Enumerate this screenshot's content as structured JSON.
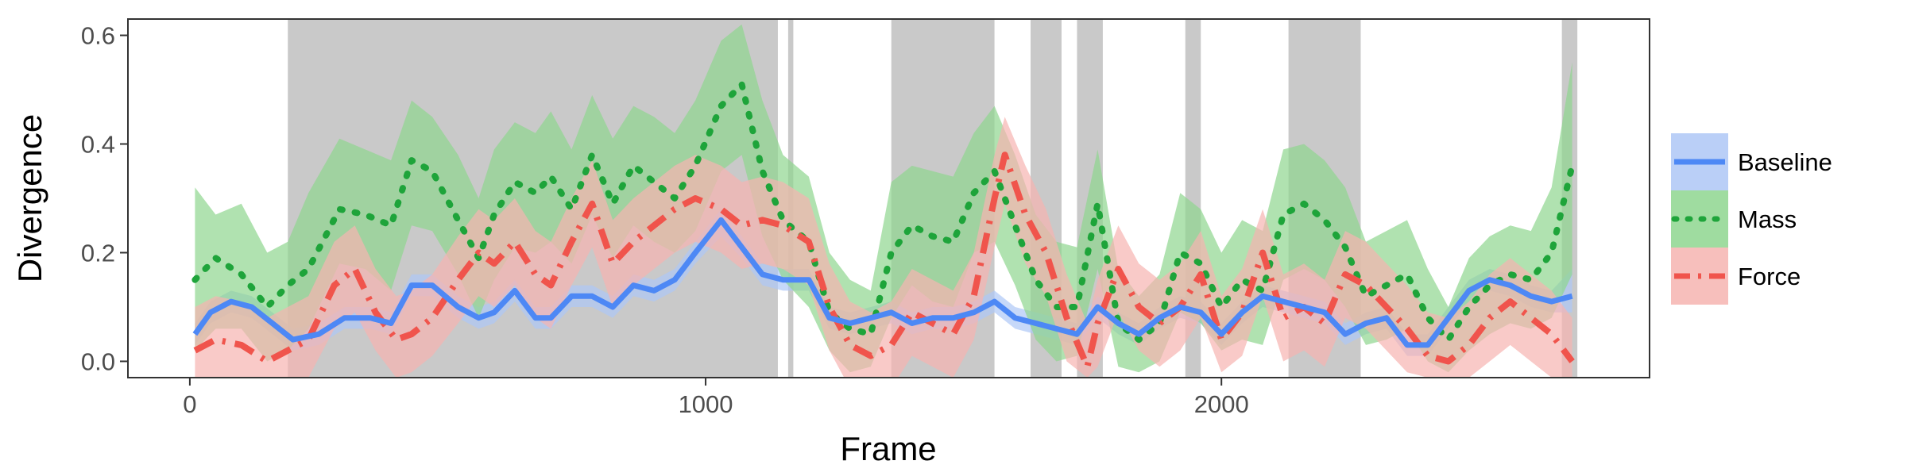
{
  "chart_data": {
    "type": "line",
    "xlabel": "Frame",
    "ylabel": "Divergence",
    "xlim": [
      -120,
      2830
    ],
    "ylim": [
      -0.03,
      0.63
    ],
    "x_ticks": [
      0,
      1000,
      2000
    ],
    "x_tick_labels": [
      "0",
      "1000",
      "2000"
    ],
    "y_ticks": [
      0.0,
      0.2,
      0.4,
      0.6
    ],
    "y_tick_labels": [
      "0.0",
      "0.2",
      "0.4",
      "0.6"
    ],
    "grid": false,
    "legend_position": "right",
    "shaded_regions": [
      {
        "x_start": 190,
        "x_end": 1140
      },
      {
        "x_start": 1160,
        "x_end": 1170
      },
      {
        "x_start": 1360,
        "x_end": 1560
      },
      {
        "x_start": 1630,
        "x_end": 1690
      },
      {
        "x_start": 1720,
        "x_end": 1770
      },
      {
        "x_start": 1930,
        "x_end": 1960
      },
      {
        "x_start": 2130,
        "x_end": 2270
      },
      {
        "x_start": 2660,
        "x_end": 2690
      }
    ],
    "series": [
      {
        "name": "Baseline",
        "color": "#4d88f5",
        "band_color": "#aec7f6",
        "line_style": "solid",
        "x": [
          10,
          40,
          80,
          120,
          160,
          200,
          250,
          300,
          350,
          390,
          430,
          470,
          520,
          560,
          590,
          630,
          670,
          700,
          740,
          780,
          820,
          860,
          900,
          940,
          980,
          1030,
          1070,
          1110,
          1150,
          1200,
          1240,
          1280,
          1320,
          1360,
          1400,
          1440,
          1480,
          1520,
          1560,
          1600,
          1640,
          1680,
          1720,
          1760,
          1800,
          1840,
          1880,
          1920,
          1960,
          2000,
          2040,
          2080,
          2120,
          2160,
          2200,
          2240,
          2280,
          2320,
          2360,
          2400,
          2440,
          2480,
          2520,
          2560,
          2600,
          2640,
          2680
        ],
        "y": [
          0.05,
          0.09,
          0.11,
          0.1,
          0.07,
          0.04,
          0.05,
          0.08,
          0.08,
          0.07,
          0.14,
          0.14,
          0.1,
          0.08,
          0.09,
          0.13,
          0.08,
          0.08,
          0.12,
          0.12,
          0.1,
          0.14,
          0.13,
          0.15,
          0.2,
          0.26,
          0.21,
          0.16,
          0.15,
          0.15,
          0.08,
          0.07,
          0.08,
          0.09,
          0.07,
          0.08,
          0.08,
          0.09,
          0.11,
          0.08,
          0.07,
          0.06,
          0.05,
          0.1,
          0.07,
          0.05,
          0.08,
          0.1,
          0.09,
          0.05,
          0.09,
          0.12,
          0.11,
          0.1,
          0.09,
          0.05,
          0.07,
          0.08,
          0.03,
          0.03,
          0.08,
          0.13,
          0.15,
          0.14,
          0.12,
          0.11,
          0.12
        ],
        "lower": [
          0.03,
          0.07,
          0.09,
          0.08,
          0.05,
          0.02,
          0.03,
          0.06,
          0.06,
          0.05,
          0.12,
          0.12,
          0.08,
          0.06,
          0.07,
          0.11,
          0.06,
          0.06,
          0.1,
          0.1,
          0.08,
          0.12,
          0.11,
          0.13,
          0.18,
          0.23,
          0.19,
          0.14,
          0.13,
          0.13,
          0.06,
          0.05,
          0.06,
          0.07,
          0.05,
          0.06,
          0.06,
          0.07,
          0.09,
          0.06,
          0.05,
          0.04,
          0.03,
          0.08,
          0.05,
          0.03,
          0.06,
          0.08,
          0.07,
          0.03,
          0.07,
          0.1,
          0.09,
          0.08,
          0.07,
          0.03,
          0.05,
          0.06,
          0.01,
          0.01,
          0.06,
          0.11,
          0.13,
          0.12,
          0.1,
          0.09,
          0.09
        ],
        "upper": [
          0.07,
          0.11,
          0.13,
          0.12,
          0.09,
          0.06,
          0.07,
          0.1,
          0.1,
          0.09,
          0.16,
          0.16,
          0.12,
          0.1,
          0.11,
          0.15,
          0.1,
          0.1,
          0.14,
          0.14,
          0.12,
          0.16,
          0.15,
          0.17,
          0.22,
          0.28,
          0.23,
          0.18,
          0.17,
          0.17,
          0.1,
          0.09,
          0.1,
          0.11,
          0.09,
          0.1,
          0.1,
          0.11,
          0.13,
          0.1,
          0.09,
          0.08,
          0.07,
          0.12,
          0.09,
          0.07,
          0.1,
          0.12,
          0.11,
          0.07,
          0.11,
          0.14,
          0.13,
          0.12,
          0.11,
          0.07,
          0.09,
          0.1,
          0.05,
          0.05,
          0.1,
          0.15,
          0.17,
          0.16,
          0.14,
          0.13,
          0.17
        ]
      },
      {
        "name": "Mass",
        "color": "#1ea43a",
        "band_color": "#8ed68f",
        "line_style": "dotted",
        "x": [
          10,
          50,
          100,
          150,
          190,
          230,
          290,
          340,
          390,
          430,
          470,
          520,
          560,
          590,
          630,
          670,
          700,
          740,
          780,
          820,
          860,
          900,
          940,
          980,
          1030,
          1070,
          1110,
          1150,
          1200,
          1240,
          1280,
          1320,
          1360,
          1400,
          1440,
          1480,
          1520,
          1560,
          1600,
          1640,
          1680,
          1720,
          1760,
          1800,
          1840,
          1880,
          1920,
          1960,
          2000,
          2040,
          2080,
          2120,
          2160,
          2200,
          2240,
          2280,
          2320,
          2360,
          2400,
          2440,
          2480,
          2520,
          2560,
          2600,
          2640,
          2680
        ],
        "y": [
          0.15,
          0.19,
          0.16,
          0.1,
          0.14,
          0.17,
          0.28,
          0.27,
          0.25,
          0.37,
          0.35,
          0.26,
          0.19,
          0.27,
          0.33,
          0.31,
          0.34,
          0.28,
          0.38,
          0.29,
          0.36,
          0.33,
          0.3,
          0.36,
          0.47,
          0.51,
          0.35,
          0.26,
          0.22,
          0.09,
          0.06,
          0.05,
          0.2,
          0.25,
          0.23,
          0.22,
          0.31,
          0.35,
          0.25,
          0.15,
          0.1,
          0.1,
          0.29,
          0.07,
          0.04,
          0.07,
          0.2,
          0.18,
          0.1,
          0.15,
          0.13,
          0.27,
          0.29,
          0.26,
          0.21,
          0.12,
          0.14,
          0.16,
          0.08,
          0.04,
          0.1,
          0.14,
          0.16,
          0.15,
          0.2,
          0.36
        ],
        "lower": [
          0.02,
          0.06,
          0.06,
          0.0,
          0.02,
          0.06,
          0.18,
          0.17,
          0.13,
          0.25,
          0.24,
          0.16,
          0.08,
          0.15,
          0.21,
          0.2,
          0.22,
          0.18,
          0.27,
          0.19,
          0.25,
          0.22,
          0.2,
          0.24,
          0.35,
          0.38,
          0.23,
          0.15,
          0.1,
          0.02,
          -0.02,
          -0.01,
          0.08,
          0.14,
          0.11,
          0.1,
          0.2,
          0.22,
          0.14,
          0.04,
          0.0,
          0.01,
          0.17,
          -0.01,
          -0.02,
          0.0,
          0.09,
          0.07,
          0.02,
          0.04,
          0.03,
          0.15,
          0.17,
          0.15,
          0.1,
          0.03,
          0.04,
          0.06,
          0.0,
          -0.02,
          0.02,
          0.05,
          0.07,
          0.06,
          0.08,
          0.16
        ],
        "upper": [
          0.32,
          0.27,
          0.29,
          0.2,
          0.22,
          0.31,
          0.41,
          0.39,
          0.37,
          0.48,
          0.45,
          0.38,
          0.3,
          0.39,
          0.44,
          0.42,
          0.46,
          0.39,
          0.49,
          0.41,
          0.47,
          0.45,
          0.42,
          0.48,
          0.59,
          0.62,
          0.48,
          0.38,
          0.34,
          0.2,
          0.15,
          0.13,
          0.33,
          0.36,
          0.35,
          0.34,
          0.42,
          0.47,
          0.38,
          0.27,
          0.22,
          0.21,
          0.39,
          0.17,
          0.12,
          0.16,
          0.31,
          0.28,
          0.2,
          0.26,
          0.24,
          0.39,
          0.4,
          0.37,
          0.32,
          0.22,
          0.24,
          0.26,
          0.17,
          0.1,
          0.19,
          0.23,
          0.25,
          0.24,
          0.32,
          0.55
        ]
      },
      {
        "name": "Force",
        "color": "#f0544c",
        "band_color": "#f6b4b0",
        "line_style": "dash-dot",
        "x": [
          10,
          50,
          100,
          150,
          190,
          230,
          280,
          320,
          360,
          400,
          430,
          470,
          520,
          560,
          590,
          630,
          670,
          700,
          740,
          780,
          820,
          860,
          900,
          940,
          980,
          1030,
          1070,
          1110,
          1150,
          1200,
          1240,
          1280,
          1320,
          1360,
          1400,
          1440,
          1480,
          1520,
          1560,
          1580,
          1620,
          1660,
          1700,
          1740,
          1760,
          1800,
          1840,
          1880,
          1920,
          1960,
          2000,
          2040,
          2080,
          2120,
          2160,
          2200,
          2240,
          2280,
          2320,
          2360,
          2400,
          2440,
          2480,
          2520,
          2560,
          2600,
          2640,
          2680
        ],
        "y": [
          0.02,
          0.04,
          0.03,
          0.0,
          0.02,
          0.04,
          0.14,
          0.17,
          0.09,
          0.04,
          0.05,
          0.08,
          0.15,
          0.2,
          0.18,
          0.22,
          0.16,
          0.14,
          0.22,
          0.29,
          0.18,
          0.22,
          0.25,
          0.28,
          0.3,
          0.28,
          0.25,
          0.26,
          0.25,
          0.22,
          0.1,
          0.03,
          0.01,
          0.03,
          0.09,
          0.07,
          0.05,
          0.12,
          0.3,
          0.38,
          0.27,
          0.2,
          0.08,
          -0.01,
          0.07,
          0.17,
          0.1,
          0.07,
          0.1,
          0.16,
          0.04,
          0.09,
          0.2,
          0.08,
          0.1,
          0.07,
          0.16,
          0.14,
          0.1,
          0.06,
          0.01,
          0.0,
          0.03,
          0.08,
          0.11,
          0.08,
          0.05,
          0.0
        ],
        "lower": [
          -0.06,
          -0.04,
          -0.05,
          -0.08,
          -0.05,
          -0.03,
          0.06,
          0.09,
          0.02,
          -0.03,
          -0.02,
          0.01,
          0.07,
          0.12,
          0.1,
          0.14,
          0.08,
          0.06,
          0.14,
          0.21,
          0.1,
          0.14,
          0.17,
          0.2,
          0.22,
          0.2,
          0.17,
          0.18,
          0.17,
          0.14,
          0.02,
          -0.05,
          -0.07,
          -0.05,
          0.01,
          -0.01,
          -0.03,
          0.04,
          0.21,
          0.29,
          0.18,
          0.12,
          0.0,
          -0.03,
          -0.01,
          0.09,
          0.02,
          -0.01,
          0.02,
          0.08,
          -0.02,
          0.01,
          0.12,
          0.0,
          0.02,
          -0.01,
          0.08,
          0.06,
          0.02,
          -0.02,
          -0.03,
          -0.03,
          -0.03,
          0.0,
          0.03,
          0.0,
          -0.03,
          -0.03
        ],
        "upper": [
          0.1,
          0.12,
          0.11,
          0.08,
          0.1,
          0.12,
          0.22,
          0.25,
          0.17,
          0.12,
          0.13,
          0.16,
          0.23,
          0.28,
          0.26,
          0.3,
          0.24,
          0.22,
          0.3,
          0.37,
          0.26,
          0.3,
          0.33,
          0.36,
          0.38,
          0.36,
          0.33,
          0.34,
          0.33,
          0.3,
          0.18,
          0.11,
          0.09,
          0.11,
          0.17,
          0.15,
          0.13,
          0.2,
          0.38,
          0.45,
          0.36,
          0.28,
          0.16,
          0.07,
          0.15,
          0.25,
          0.18,
          0.15,
          0.18,
          0.24,
          0.12,
          0.17,
          0.28,
          0.16,
          0.18,
          0.15,
          0.24,
          0.22,
          0.18,
          0.14,
          0.09,
          0.08,
          0.11,
          0.16,
          0.19,
          0.16,
          0.13,
          0.08
        ]
      }
    ]
  }
}
